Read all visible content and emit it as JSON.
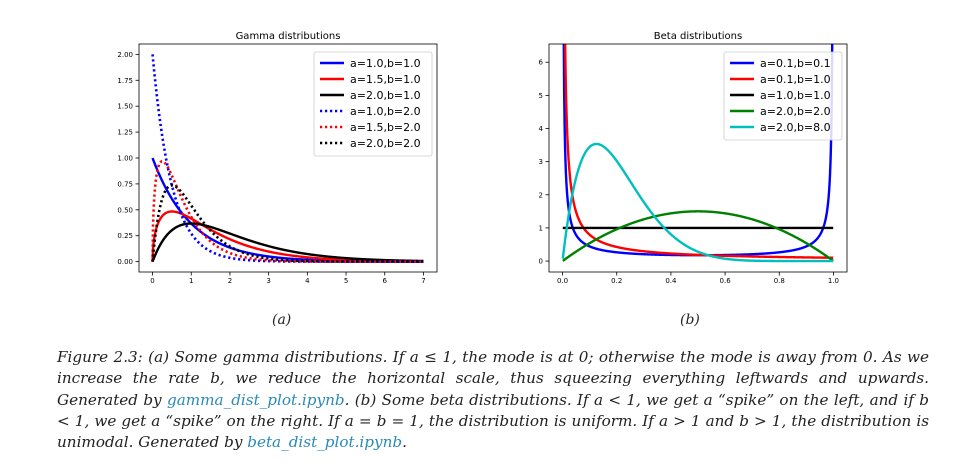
{
  "chart_data": [
    {
      "type": "line",
      "title": "Gamma distributions",
      "xlabel": "",
      "ylabel": "",
      "xlim": [
        0,
        7
      ],
      "ylim": [
        0,
        2.0
      ],
      "xticks": [
        "0",
        "1",
        "2",
        "3",
        "4",
        "5",
        "6",
        "7"
      ],
      "yticks": [
        "0.00",
        "0.25",
        "0.50",
        "0.75",
        "1.00",
        "1.25",
        "1.50",
        "1.75",
        "2.00"
      ],
      "grid": false,
      "legend_position": "top-right",
      "series": [
        {
          "name": "a=1.0,b=1.0",
          "color": "#0000ff",
          "style": "solid",
          "a": 1.0,
          "b": 1.0
        },
        {
          "name": "a=1.5,b=1.0",
          "color": "#ff0000",
          "style": "solid",
          "a": 1.5,
          "b": 1.0
        },
        {
          "name": "a=2.0,b=1.0",
          "color": "#000000",
          "style": "solid",
          "a": 2.0,
          "b": 1.0
        },
        {
          "name": "a=1.0,b=2.0",
          "color": "#0000ff",
          "style": "dotted",
          "a": 1.0,
          "b": 2.0
        },
        {
          "name": "a=1.5,b=2.0",
          "color": "#ff0000",
          "style": "dotted",
          "a": 1.5,
          "b": 2.0
        },
        {
          "name": "a=2.0,b=2.0",
          "color": "#000000",
          "style": "dotted",
          "a": 2.0,
          "b": 2.0
        }
      ]
    },
    {
      "type": "line",
      "title": "Beta distributions",
      "xlabel": "",
      "ylabel": "",
      "xlim": [
        0,
        1
      ],
      "ylim": [
        0,
        6.5
      ],
      "xticks": [
        "0.0",
        "0.2",
        "0.4",
        "0.6",
        "0.8",
        "1.0"
      ],
      "yticks": [
        "0",
        "1",
        "2",
        "3",
        "4",
        "5",
        "6"
      ],
      "grid": false,
      "legend_position": "top-right",
      "series": [
        {
          "name": "a=0.1,b=0.1",
          "color": "#0000ff",
          "style": "solid",
          "a": 0.1,
          "b": 0.1
        },
        {
          "name": "a=0.1,b=1.0",
          "color": "#ff0000",
          "style": "solid",
          "a": 0.1,
          "b": 1.0
        },
        {
          "name": "a=1.0,b=1.0",
          "color": "#000000",
          "style": "solid",
          "a": 1.0,
          "b": 1.0
        },
        {
          "name": "a=2.0,b=2.0",
          "color": "#008000",
          "style": "solid",
          "a": 2.0,
          "b": 2.0
        },
        {
          "name": "a=2.0,b=8.0",
          "color": "#00bfbf",
          "style": "solid",
          "a": 2.0,
          "b": 8.0
        }
      ]
    }
  ],
  "subfig_labels": [
    "(a)",
    "(b)"
  ],
  "caption": {
    "p1": "Figure 2.3: (a) Some gamma distributions. If a ≤ 1, the mode is at 0; otherwise the mode is away from 0. As we increase the rate b, we reduce the horizontal scale, thus squeezing everything leftwards and upwards. Generated by ",
    "link1": "gamma_dist_plot.ipynb",
    "p2": ". (b) Some beta distributions. If a < 1, we get a “spike” on the left, and if b < 1, we get a “spike” on the right. If a = b = 1, the distribution is uniform. If a > 1 and b > 1, the distribution is unimodal. Generated by ",
    "link2": "beta_dist_plot.ipynb",
    "p3": "."
  }
}
